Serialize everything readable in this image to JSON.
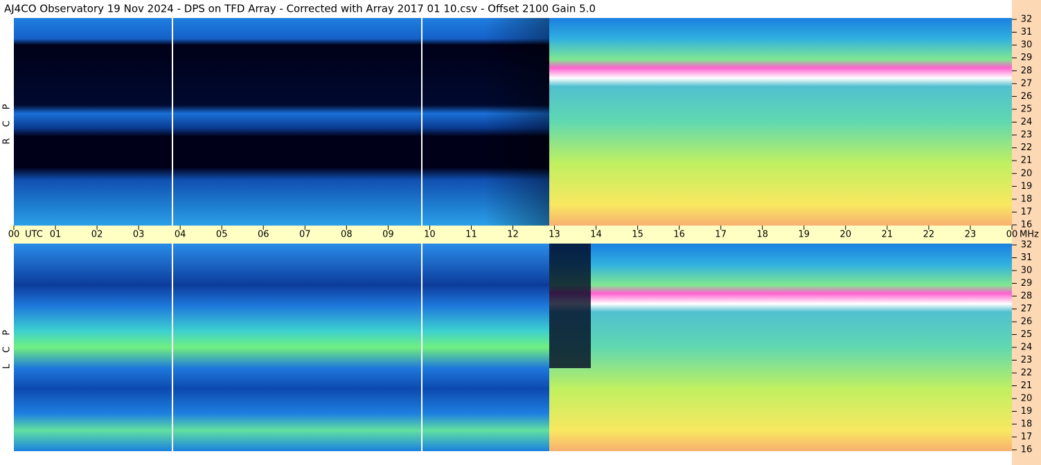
{
  "chart_data": {
    "type": "spectrogram",
    "title": "AJ4CO Observatory  19 Nov 2024  -  DPS on TFD Array  -  Corrected with Array 2017 01 10.csv  -  Offset 2100  Gain 5.0",
    "x_label": "UTC",
    "y_label": "MHz",
    "panels": [
      "R C P",
      "L C P"
    ],
    "xlim": [
      0,
      24
    ],
    "xticks": [
      {
        "value": 0,
        "label": "00"
      },
      {
        "value": 1,
        "label": "01"
      },
      {
        "value": 2,
        "label": "02"
      },
      {
        "value": 3,
        "label": "03"
      },
      {
        "value": 4,
        "label": "04"
      },
      {
        "value": 5,
        "label": "05"
      },
      {
        "value": 6,
        "label": "06"
      },
      {
        "value": 7,
        "label": "07"
      },
      {
        "value": 8,
        "label": "08"
      },
      {
        "value": 9,
        "label": "09"
      },
      10,
      11,
      12,
      13,
      14,
      15,
      16,
      17,
      18,
      19,
      20,
      21,
      22,
      23,
      {
        "value": 24,
        "label": "00"
      }
    ],
    "ylim": [
      16,
      32
    ],
    "yticks": [
      16,
      17,
      18,
      19,
      20,
      21,
      22,
      23,
      24,
      25,
      26,
      27,
      28,
      29,
      30,
      31,
      32
    ]
  }
}
